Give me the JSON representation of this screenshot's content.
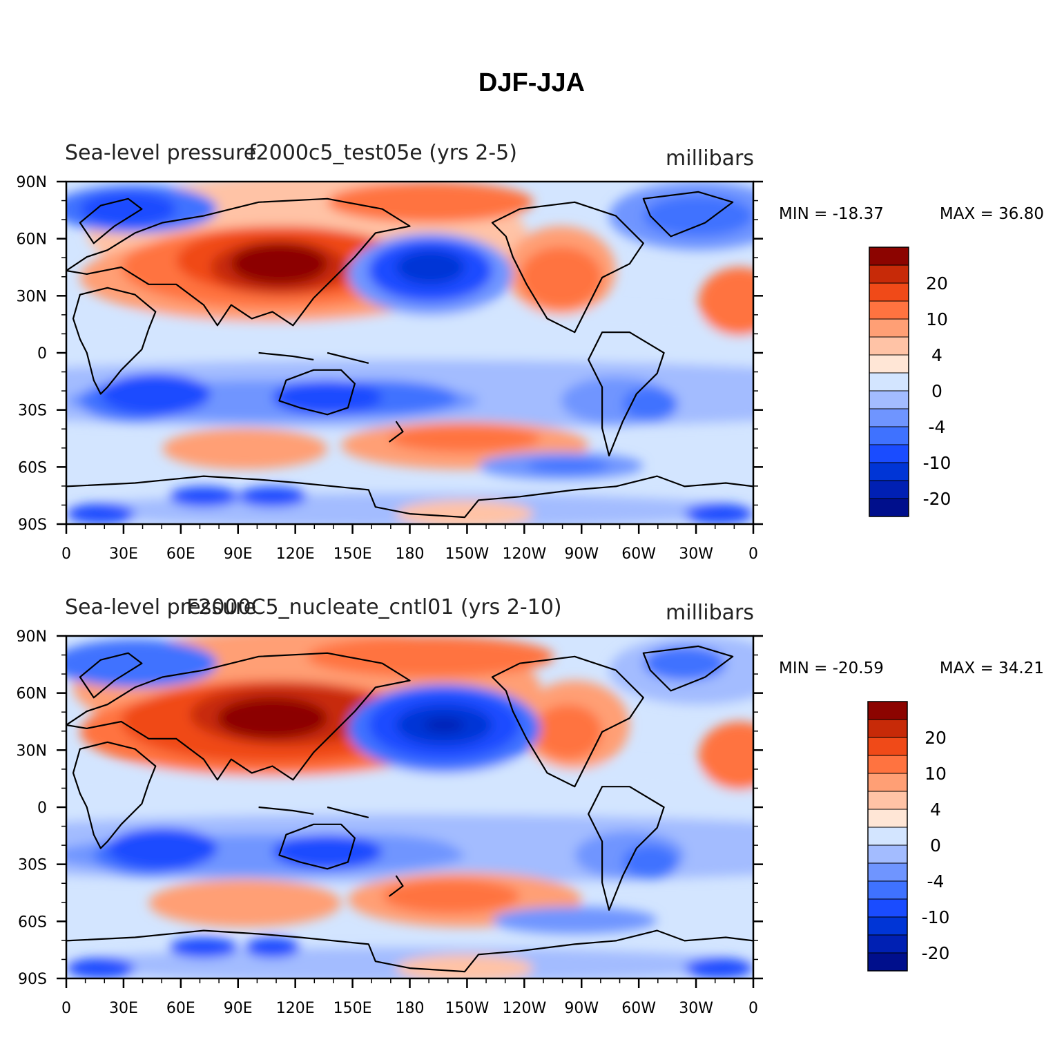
{
  "figure": {
    "title": "DJF-JJA"
  },
  "colors": {
    "levels": [
      "#000f8c",
      "#0020b3",
      "#0035d6",
      "#1a4cff",
      "#3f72ff",
      "#6f95ff",
      "#a3bcff",
      "#d3e5ff",
      "#ffe6d6",
      "#ffc3a6",
      "#ff9f75",
      "#ff7340",
      "#f04a18",
      "#c72a08",
      "#8c0400"
    ],
    "coast": "#000000"
  },
  "panels": [
    {
      "id": "top",
      "left_label": "Sea-level pressure",
      "case_label": "f2000c5_test05e (yrs 2-5)",
      "units": "millibars",
      "min_label": "MIN = -18.37",
      "max_label": "MAX =  36.80",
      "min": -18.37,
      "max": 36.8,
      "y_ticks": [
        "90N",
        "60N",
        "30N",
        "0",
        "30S",
        "60S",
        "90S"
      ],
      "x_ticks": [
        "0",
        "30E",
        "60E",
        "90E",
        "120E",
        "150E",
        "180",
        "150W",
        "120W",
        "90W",
        "60W",
        "30W",
        "0"
      ],
      "colorbar_labels": [
        "20",
        "10",
        "4",
        "0",
        "-4",
        "-10",
        "-20"
      ]
    },
    {
      "id": "bottom",
      "left_label": "Sea-level pressure",
      "case_label": "F2000C5_nucleate_cntl01 (yrs 2-10)",
      "units": "millibars",
      "min_label": "MIN = -20.59",
      "max_label": "MAX =  34.21",
      "min": -20.59,
      "max": 34.21,
      "y_ticks": [
        "90N",
        "60N",
        "30N",
        "0",
        "30S",
        "60S",
        "90S"
      ],
      "x_ticks": [
        "0",
        "30E",
        "60E",
        "90E",
        "120E",
        "150E",
        "180",
        "150W",
        "120W",
        "90W",
        "60W",
        "30W",
        "0"
      ],
      "colorbar_labels": [
        "20",
        "10",
        "4",
        "0",
        "-4",
        "-10",
        "-20"
      ]
    }
  ]
}
